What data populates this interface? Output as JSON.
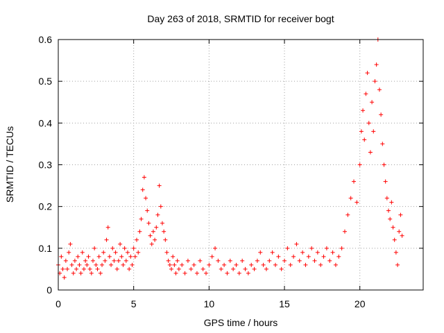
{
  "chart_data": {
    "type": "scatter",
    "title": "Day 263 of 2018, SRMTID for receiver bogt",
    "xlabel": "GPS time / hours",
    "ylabel": "SRMTID / TECUs",
    "xlim": [
      0,
      24.2
    ],
    "ylim": [
      0,
      0.6
    ],
    "xticks": [
      0,
      5,
      10,
      15,
      20
    ],
    "xtick_labels": [
      "0",
      "5",
      "10",
      "15",
      "20"
    ],
    "yticks": [
      0,
      0.1,
      0.2,
      0.3,
      0.4,
      0.5,
      0.6
    ],
    "ytick_labels": [
      "0",
      "0.1",
      "0.2",
      "0.3",
      "0.4",
      "0.5",
      "0.6"
    ],
    "grid": true,
    "marker": "+",
    "series": [
      {
        "name": "SRMTID",
        "color": "#ff0000",
        "points": [
          [
            0.0,
            0.06
          ],
          [
            0.1,
            0.04
          ],
          [
            0.2,
            0.08
          ],
          [
            0.3,
            0.05
          ],
          [
            0.4,
            0.03
          ],
          [
            0.5,
            0.07
          ],
          [
            0.6,
            0.05
          ],
          [
            0.7,
            0.09
          ],
          [
            0.8,
            0.11
          ],
          [
            0.9,
            0.06
          ],
          [
            1.0,
            0.04
          ],
          [
            1.1,
            0.07
          ],
          [
            1.2,
            0.05
          ],
          [
            1.3,
            0.08
          ],
          [
            1.4,
            0.06
          ],
          [
            1.5,
            0.04
          ],
          [
            1.6,
            0.09
          ],
          [
            1.7,
            0.05
          ],
          [
            1.8,
            0.07
          ],
          [
            1.9,
            0.06
          ],
          [
            2.0,
            0.08
          ],
          [
            2.1,
            0.05
          ],
          [
            2.2,
            0.04
          ],
          [
            2.3,
            0.07
          ],
          [
            2.4,
            0.1
          ],
          [
            2.5,
            0.06
          ],
          [
            2.6,
            0.05
          ],
          [
            2.7,
            0.08
          ],
          [
            2.8,
            0.04
          ],
          [
            2.9,
            0.06
          ],
          [
            3.0,
            0.09
          ],
          [
            3.1,
            0.07
          ],
          [
            3.2,
            0.12
          ],
          [
            3.3,
            0.15
          ],
          [
            3.4,
            0.08
          ],
          [
            3.5,
            0.06
          ],
          [
            3.6,
            0.1
          ],
          [
            3.7,
            0.07
          ],
          [
            3.8,
            0.09
          ],
          [
            3.9,
            0.05
          ],
          [
            4.0,
            0.07
          ],
          [
            4.1,
            0.11
          ],
          [
            4.2,
            0.08
          ],
          [
            4.3,
            0.06
          ],
          [
            4.4,
            0.1
          ],
          [
            4.5,
            0.07
          ],
          [
            4.6,
            0.09
          ],
          [
            4.7,
            0.05
          ],
          [
            4.8,
            0.08
          ],
          [
            4.9,
            0.06
          ],
          [
            5.0,
            0.1
          ],
          [
            5.1,
            0.08
          ],
          [
            5.2,
            0.12
          ],
          [
            5.3,
            0.09
          ],
          [
            5.4,
            0.14
          ],
          [
            5.5,
            0.17
          ],
          [
            5.6,
            0.24
          ],
          [
            5.7,
            0.27
          ],
          [
            5.8,
            0.22
          ],
          [
            5.9,
            0.19
          ],
          [
            6.0,
            0.16
          ],
          [
            6.1,
            0.13
          ],
          [
            6.2,
            0.11
          ],
          [
            6.3,
            0.14
          ],
          [
            6.4,
            0.12
          ],
          [
            6.5,
            0.15
          ],
          [
            6.6,
            0.18
          ],
          [
            6.7,
            0.25
          ],
          [
            6.8,
            0.2
          ],
          [
            6.9,
            0.16
          ],
          [
            7.0,
            0.14
          ],
          [
            7.1,
            0.12
          ],
          [
            7.2,
            0.09
          ],
          [
            7.3,
            0.07
          ],
          [
            7.4,
            0.06
          ],
          [
            7.5,
            0.05
          ],
          [
            7.6,
            0.08
          ],
          [
            7.7,
            0.06
          ],
          [
            7.8,
            0.04
          ],
          [
            7.9,
            0.07
          ],
          [
            8.0,
            0.05
          ],
          [
            8.2,
            0.06
          ],
          [
            8.4,
            0.04
          ],
          [
            8.6,
            0.07
          ],
          [
            8.8,
            0.05
          ],
          [
            9.0,
            0.06
          ],
          [
            9.2,
            0.04
          ],
          [
            9.4,
            0.07
          ],
          [
            9.6,
            0.05
          ],
          [
            9.8,
            0.04
          ],
          [
            10.0,
            0.06
          ],
          [
            10.2,
            0.08
          ],
          [
            10.4,
            0.1
          ],
          [
            10.6,
            0.07
          ],
          [
            10.8,
            0.05
          ],
          [
            11.0,
            0.06
          ],
          [
            11.2,
            0.04
          ],
          [
            11.4,
            0.07
          ],
          [
            11.6,
            0.05
          ],
          [
            11.8,
            0.06
          ],
          [
            12.0,
            0.04
          ],
          [
            12.2,
            0.07
          ],
          [
            12.4,
            0.05
          ],
          [
            12.6,
            0.04
          ],
          [
            12.8,
            0.06
          ],
          [
            13.0,
            0.05
          ],
          [
            13.2,
            0.07
          ],
          [
            13.4,
            0.09
          ],
          [
            13.6,
            0.06
          ],
          [
            13.8,
            0.05
          ],
          [
            14.0,
            0.07
          ],
          [
            14.2,
            0.09
          ],
          [
            14.4,
            0.06
          ],
          [
            14.6,
            0.08
          ],
          [
            14.8,
            0.05
          ],
          [
            15.0,
            0.07
          ],
          [
            15.2,
            0.1
          ],
          [
            15.4,
            0.06
          ],
          [
            15.6,
            0.08
          ],
          [
            15.8,
            0.11
          ],
          [
            16.0,
            0.07
          ],
          [
            16.2,
            0.09
          ],
          [
            16.4,
            0.06
          ],
          [
            16.6,
            0.08
          ],
          [
            16.8,
            0.1
          ],
          [
            17.0,
            0.07
          ],
          [
            17.2,
            0.09
          ],
          [
            17.4,
            0.06
          ],
          [
            17.6,
            0.08
          ],
          [
            17.8,
            0.1
          ],
          [
            18.0,
            0.07
          ],
          [
            18.2,
            0.09
          ],
          [
            18.4,
            0.06
          ],
          [
            18.6,
            0.08
          ],
          [
            18.8,
            0.1
          ],
          [
            19.0,
            0.14
          ],
          [
            19.2,
            0.18
          ],
          [
            19.4,
            0.22
          ],
          [
            19.6,
            0.26
          ],
          [
            19.8,
            0.21
          ],
          [
            20.0,
            0.3
          ],
          [
            20.1,
            0.38
          ],
          [
            20.2,
            0.43
          ],
          [
            20.3,
            0.36
          ],
          [
            20.4,
            0.47
          ],
          [
            20.5,
            0.52
          ],
          [
            20.6,
            0.4
          ],
          [
            20.7,
            0.33
          ],
          [
            20.8,
            0.45
          ],
          [
            20.9,
            0.38
          ],
          [
            21.0,
            0.5
          ],
          [
            21.1,
            0.54
          ],
          [
            21.2,
            0.6
          ],
          [
            21.3,
            0.48
          ],
          [
            21.4,
            0.42
          ],
          [
            21.5,
            0.35
          ],
          [
            21.6,
            0.3
          ],
          [
            21.7,
            0.26
          ],
          [
            21.8,
            0.22
          ],
          [
            21.9,
            0.19
          ],
          [
            22.0,
            0.17
          ],
          [
            22.1,
            0.21
          ],
          [
            22.2,
            0.15
          ],
          [
            22.3,
            0.12
          ],
          [
            22.4,
            0.09
          ],
          [
            22.5,
            0.06
          ],
          [
            22.6,
            0.14
          ],
          [
            22.7,
            0.18
          ],
          [
            22.8,
            0.13
          ]
        ]
      }
    ]
  }
}
